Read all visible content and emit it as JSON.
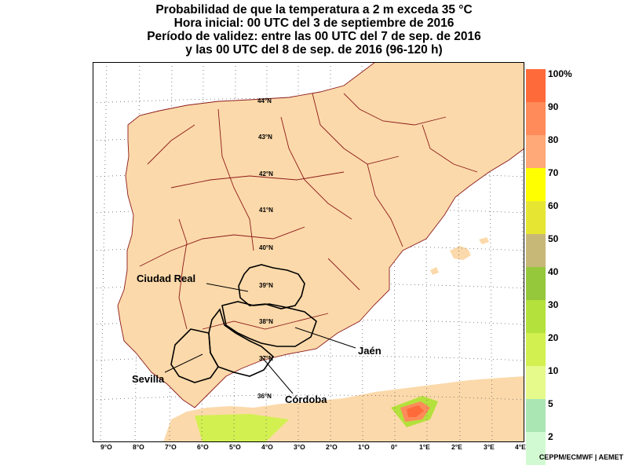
{
  "title": {
    "line1": "Probabilidad de que la temperatura a 2 m exceda 35 °C",
    "line2": "Hora inicial: 00 UTC del 3 de septiembre de 2016",
    "line3": "Período de validez: entre las 00 UTC del 7 de sep. de 2016",
    "line4": "y las 00 UTC del 8 de sep. de 2016 (96-120 h)"
  },
  "legend": {
    "labels": [
      "100%",
      "90",
      "80",
      "70",
      "60",
      "50",
      "40",
      "30",
      "20",
      "10",
      "5",
      "2"
    ],
    "colors": [
      "#ff6a3a",
      "#ff8a5a",
      "#ffa878",
      "#ffff00",
      "#e6e632",
      "#c8b878",
      "#96c83c",
      "#b4e13c",
      "#d2f050",
      "#e6fa8c",
      "#aae6b4",
      "#d2fad2"
    ]
  },
  "map": {
    "latitude_labels": [
      "44°N",
      "43°N",
      "42°N",
      "41°N",
      "40°N",
      "39°N",
      "38°N",
      "37°N",
      "36°N"
    ],
    "longitude_labels": [
      "9°O",
      "8°O",
      "7°O",
      "6°O",
      "5°O",
      "4°O",
      "3°O",
      "2°O",
      "1°O",
      "0°",
      "1°E",
      "2°E",
      "3°E",
      "4°E"
    ],
    "place_labels": [
      "Ciudad Real",
      "Jaén",
      "Sevilla",
      "Córdoba"
    ],
    "colors": {
      "sea": "#ffffff",
      "land_background": "#fcd9aa",
      "borders": "#8b1a1a",
      "highlight_borders": "#000000"
    }
  },
  "credit": "CEPPM/ECMWF | AEMET"
}
